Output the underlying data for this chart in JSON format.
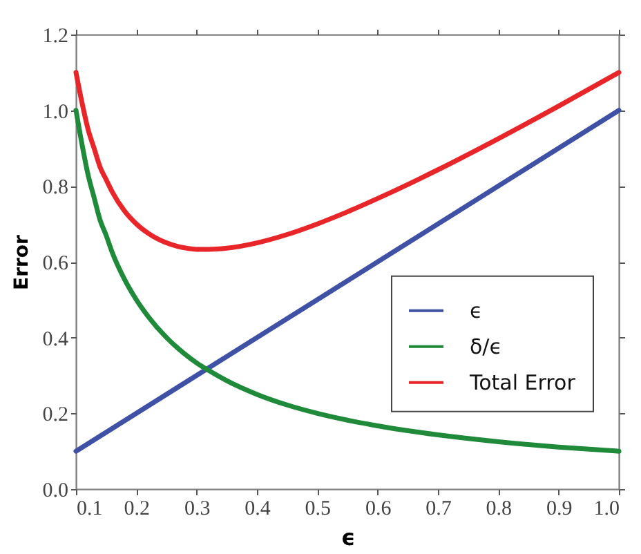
{
  "chart_data": {
    "type": "line",
    "xlabel": "ϵ",
    "ylabel": "Error",
    "series": [
      {
        "name": "ϵ",
        "color": "#3f51a5",
        "x": [
          0.1,
          0.55,
          1.0
        ],
        "values": [
          0.1,
          0.55,
          1.0
        ]
      },
      {
        "name": "δ/ϵ",
        "color": "#1f8a3a",
        "x": [
          0.1,
          0.11,
          0.12,
          0.13,
          0.14,
          0.15,
          0.16,
          0.18,
          0.2,
          0.22,
          0.25,
          0.28,
          0.3,
          0.32,
          0.35,
          0.4,
          0.45,
          0.5,
          0.55,
          0.6,
          0.65,
          0.7,
          0.8,
          0.9,
          1.0
        ],
        "values": [
          1.0,
          0.91,
          0.83,
          0.77,
          0.71,
          0.67,
          0.625,
          0.555,
          0.5,
          0.455,
          0.4,
          0.357,
          0.333,
          0.313,
          0.286,
          0.25,
          0.222,
          0.2,
          0.182,
          0.167,
          0.154,
          0.143,
          0.125,
          0.111,
          0.1
        ]
      },
      {
        "name": "Total Error",
        "color": "#e8262a",
        "x": [
          0.1,
          0.11,
          0.12,
          0.13,
          0.14,
          0.15,
          0.16,
          0.18,
          0.2,
          0.22,
          0.25,
          0.28,
          0.3,
          0.32,
          0.35,
          0.4,
          0.45,
          0.5,
          0.55,
          0.6,
          0.65,
          0.7,
          0.8,
          0.9,
          1.0
        ],
        "values": [
          1.1,
          1.02,
          0.95,
          0.9,
          0.85,
          0.817,
          0.785,
          0.735,
          0.7,
          0.675,
          0.65,
          0.637,
          0.633,
          0.633,
          0.636,
          0.65,
          0.672,
          0.7,
          0.732,
          0.767,
          0.804,
          0.843,
          0.925,
          1.011,
          1.1
        ]
      }
    ],
    "xlim": [
      0.1,
      1.0
    ],
    "ylim": [
      0,
      1.2
    ],
    "xticks": [
      0.1,
      0.2,
      0.3,
      0.4,
      0.5,
      0.6,
      0.7,
      0.8,
      0.9,
      {
        "value": 1,
        "label": "1.0"
      }
    ],
    "yticks": [
      {
        "value": 0,
        "label": "0.0"
      },
      0.2,
      0.4,
      0.6,
      0.8,
      {
        "value": 1,
        "label": "1.0"
      },
      1.2
    ],
    "legend": "right",
    "marker": "none",
    "line_style": "solid"
  }
}
